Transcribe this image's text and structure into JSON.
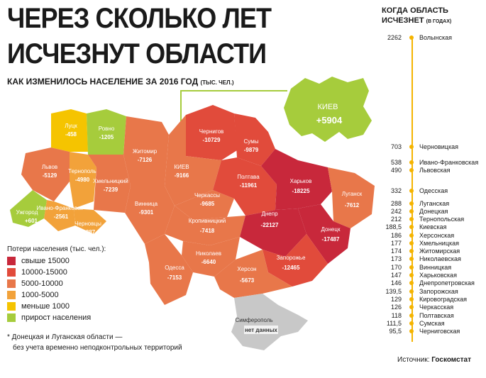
{
  "title_line1": "ЧЕРЕЗ СКОЛЬКО ЛЕТ",
  "title_line2": "ИСЧЕЗНУТ ОБЛАСТИ",
  "subtitle": "КАК ИЗМЕНИЛОСЬ НАСЕЛЕНИЕ ЗА 2016 ГОД",
  "subtitle_unit": "(ТЫС. ЧЕЛ.)",
  "colors": {
    "over15000": "#c8283b",
    "r10000_15000": "#e14b3b",
    "r5000_10000": "#e8774a",
    "r1000_5000": "#f2a23a",
    "under1000": "#f5c400",
    "growth": "#a6cc3c",
    "nodata": "#c8c8c8",
    "timeline": "#f5b400"
  },
  "regions": [
    {
      "name": "Луцк",
      "value": "-458"
    },
    {
      "name": "Ровно",
      "value": "-1205"
    },
    {
      "name": "Житомир",
      "value": "-7126"
    },
    {
      "name": "Чернигов",
      "value": "-10729"
    },
    {
      "name": "Сумы",
      "value": "-9879"
    },
    {
      "name": "Львов",
      "value": "-5129"
    },
    {
      "name": "Тернополь",
      "value": "-4980"
    },
    {
      "name": "Хмельницкий",
      "value": "-7239"
    },
    {
      "name": "Винница",
      "value": "-9301"
    },
    {
      "name": "КИЕВ",
      "value": "-9166"
    },
    {
      "name": "Черкассы",
      "value": "-9685"
    },
    {
      "name": "Полтава",
      "value": "-11961"
    },
    {
      "name": "Харьков",
      "value": "-18225"
    },
    {
      "name": "Луганск",
      "value": "-7612"
    },
    {
      "name": "Ужгород",
      "value": "+601"
    },
    {
      "name": "Ивано-Франковск",
      "value": "-2561"
    },
    {
      "name": "Черновцы",
      "value": "-1287"
    },
    {
      "name": "Кропивницкий",
      "value": "-7418"
    },
    {
      "name": "Днепр",
      "value": "-22127"
    },
    {
      "name": "Донецк",
      "value": "-17487"
    },
    {
      "name": "Николаев",
      "value": "-6640"
    },
    {
      "name": "Запорожье",
      "value": "-12465"
    },
    {
      "name": "Одесса",
      "value": "-7153"
    },
    {
      "name": "Херсон",
      "value": "-5673"
    },
    {
      "name": "Симферополь",
      "value": "нет данных"
    }
  ],
  "kiev_inset": {
    "name": "КИЕВ",
    "value": "+5904"
  },
  "legend": {
    "title": "Потери населения (тыс. чел.):",
    "items": [
      "свыше 15000",
      "10000-15000",
      "5000-10000",
      "1000-5000",
      "меньше 1000",
      "прирост населения"
    ]
  },
  "footnote_line1": "* Донецкая и Луганская области —",
  "footnote_line2": "без учета временно неподконтрольных территорий",
  "source_label": "Источник:",
  "source_name": "Госкомстат",
  "timeline": {
    "heading_line1": "КОГДА ОБЛАСТЬ",
    "heading_line2": "ИСЧЕЗНЕТ",
    "heading_unit": "(В ГОДАХ)",
    "rows": [
      {
        "years": "2262",
        "name": "Волынская"
      },
      {
        "years": "703",
        "name": "Черновицкая"
      },
      {
        "years": "538",
        "name": "Ивано-Франковская"
      },
      {
        "years": "490",
        "name": "Львовская"
      },
      {
        "years": "332",
        "name": "Одесская"
      },
      {
        "years": "288",
        "name": "Луганская"
      },
      {
        "years": "242",
        "name": "Донецкая"
      },
      {
        "years": "212",
        "name": "Тернопольская"
      },
      {
        "years": "188,5",
        "name": "Киевская"
      },
      {
        "years": "186",
        "name": "Херсонская"
      },
      {
        "years": "177",
        "name": "Хмельницкая"
      },
      {
        "years": "174",
        "name": "Житомирская"
      },
      {
        "years": "173",
        "name": "Николаевская"
      },
      {
        "years": "170",
        "name": "Винницкая"
      },
      {
        "years": "147",
        "name": "Харьковская"
      },
      {
        "years": "146",
        "name": "Днепропетровская"
      },
      {
        "years": "139,5",
        "name": "Запорожская"
      },
      {
        "years": "129",
        "name": "Кировоградская"
      },
      {
        "years": "126",
        "name": "Черкасская"
      },
      {
        "years": "118",
        "name": "Полтавская"
      },
      {
        "years": "111,5",
        "name": "Сумская"
      },
      {
        "years": "95,5",
        "name": "Черниговская"
      }
    ]
  }
}
